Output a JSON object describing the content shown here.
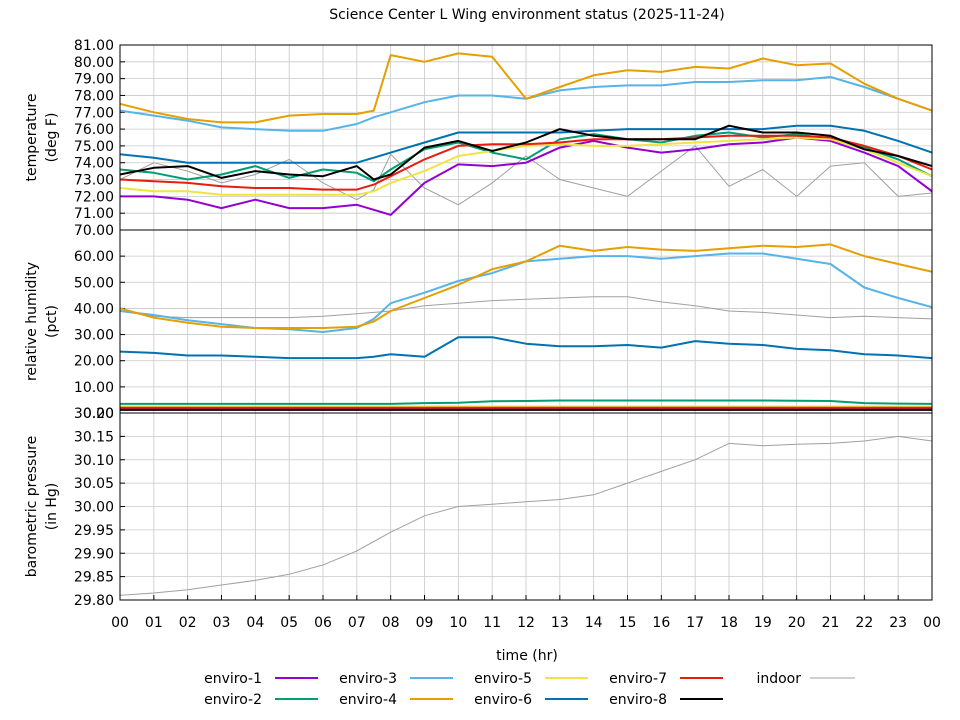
{
  "title": "Science Center L Wing environment status (2025-11-24)",
  "colors": {
    "enviro-1": "#9400d3",
    "enviro-2": "#009e73",
    "enviro-3": "#56b4e9",
    "enviro-4": "#e69f00",
    "enviro-5": "#f0e442",
    "enviro-6": "#0072b2",
    "enviro-7": "#e51e10",
    "enviro-8": "#000000",
    "indoor": "#a0a0a0"
  },
  "chart_data": [
    {
      "type": "line",
      "title": "Science Center L Wing environment status (2025-11-24)",
      "xlabel": "",
      "ylabel": "temperature\n(deg F)",
      "ylim": [
        70,
        81
      ],
      "xlim": [
        0,
        24
      ],
      "grid": true,
      "yticks": [
        "70.00",
        "71.00",
        "72.00",
        "73.00",
        "74.00",
        "75.00",
        "76.00",
        "77.00",
        "78.00",
        "79.00",
        "80.00",
        "81.00"
      ],
      "x": [
        0,
        1,
        2,
        3,
        4,
        5,
        6,
        7,
        7.5,
        8,
        9,
        10,
        11,
        12,
        13,
        14,
        15,
        16,
        17,
        18,
        19,
        20,
        21,
        22,
        23,
        24
      ],
      "series": [
        {
          "name": "enviro-1",
          "values": [
            72.0,
            72.0,
            71.8,
            71.3,
            71.8,
            71.3,
            71.3,
            71.5,
            71.2,
            70.9,
            72.8,
            73.9,
            73.8,
            74.0,
            74.9,
            75.3,
            74.9,
            74.6,
            74.8,
            75.1,
            75.2,
            75.5,
            75.3,
            74.6,
            73.8,
            72.3
          ]
        },
        {
          "name": "enviro-2",
          "values": [
            73.6,
            73.4,
            73.0,
            73.3,
            73.8,
            73.1,
            73.6,
            73.4,
            72.9,
            73.6,
            74.8,
            75.2,
            74.6,
            74.2,
            75.4,
            75.7,
            75.4,
            75.2,
            75.6,
            75.8,
            75.5,
            75.7,
            75.4,
            74.9,
            74.2,
            73.2
          ]
        },
        {
          "name": "enviro-3",
          "values": [
            77.1,
            76.8,
            76.5,
            76.1,
            76.0,
            75.9,
            75.9,
            76.3,
            76.7,
            77.0,
            77.6,
            78.0,
            78.0,
            77.8,
            78.3,
            78.5,
            78.6,
            78.6,
            78.8,
            78.8,
            78.9,
            78.9,
            79.1,
            78.5,
            77.8,
            77.1
          ]
        },
        {
          "name": "enviro-4",
          "values": [
            77.5,
            77.0,
            76.6,
            76.4,
            76.4,
            76.8,
            76.9,
            76.9,
            77.1,
            80.4,
            80.0,
            80.5,
            80.3,
            77.8,
            78.5,
            79.2,
            79.5,
            79.4,
            79.7,
            79.6,
            80.2,
            79.8,
            79.9,
            78.7,
            77.8,
            77.1
          ]
        },
        {
          "name": "enviro-5",
          "values": [
            72.5,
            72.3,
            72.3,
            72.1,
            72.1,
            72.1,
            72.1,
            72.1,
            72.3,
            72.8,
            73.5,
            74.4,
            74.7,
            75.0,
            75.1,
            75.0,
            75.0,
            75.1,
            75.2,
            75.3,
            75.4,
            75.5,
            75.4,
            74.8,
            74.0,
            73.2
          ]
        },
        {
          "name": "enviro-6",
          "values": [
            74.5,
            74.3,
            74.0,
            74.0,
            74.0,
            74.0,
            74.0,
            74.0,
            74.3,
            74.6,
            75.2,
            75.8,
            75.8,
            75.8,
            75.8,
            75.9,
            76.0,
            76.0,
            76.0,
            76.0,
            76.0,
            76.2,
            76.2,
            75.9,
            75.3,
            74.6
          ]
        },
        {
          "name": "enviro-7",
          "values": [
            73.0,
            72.9,
            72.8,
            72.6,
            72.5,
            72.5,
            72.4,
            72.4,
            72.7,
            73.2,
            74.2,
            75.0,
            75.1,
            75.1,
            75.2,
            75.4,
            75.4,
            75.4,
            75.5,
            75.6,
            75.6,
            75.6,
            75.5,
            75.0,
            74.4,
            73.6
          ]
        },
        {
          "name": "enviro-8",
          "values": [
            73.3,
            73.7,
            73.8,
            73.1,
            73.5,
            73.3,
            73.2,
            73.8,
            73.0,
            73.3,
            74.9,
            75.3,
            74.7,
            75.2,
            76.0,
            75.6,
            75.4,
            75.4,
            75.4,
            76.2,
            75.8,
            75.8,
            75.6,
            74.8,
            74.4,
            73.8
          ]
        },
        {
          "name": "indoor",
          "values": [
            73.0,
            74.0,
            73.5,
            72.8,
            73.3,
            74.2,
            72.8,
            71.8,
            72.4,
            74.5,
            72.5,
            71.5,
            72.8,
            74.4,
            73.0,
            72.5,
            72.0,
            73.5,
            75.0,
            72.6,
            73.6,
            72.0,
            73.8,
            74.0,
            72.0,
            72.2
          ]
        }
      ]
    },
    {
      "type": "line",
      "xlabel": "",
      "ylabel": "relative humidity\n(pct)",
      "ylim": [
        0,
        70
      ],
      "xlim": [
        0,
        24
      ],
      "grid": true,
      "yticks": [
        "0.00",
        "10.00",
        "20.00",
        "30.00",
        "40.00",
        "50.00",
        "60.00"
      ],
      "x": [
        0,
        1,
        2,
        3,
        4,
        5,
        6,
        7,
        7.5,
        8,
        9,
        10,
        11,
        12,
        13,
        14,
        15,
        16,
        17,
        18,
        19,
        20,
        21,
        22,
        23,
        24
      ],
      "series": [
        {
          "name": "enviro-1",
          "values": [
            1.5,
            1.5,
            1.5,
            1.5,
            1.5,
            1.5,
            1.5,
            1.5,
            1.5,
            1.5,
            1.5,
            1.5,
            1.5,
            1.5,
            1.5,
            1.5,
            1.5,
            1.5,
            1.5,
            1.5,
            1.5,
            1.5,
            1.5,
            1.5,
            1.5,
            1.5
          ]
        },
        {
          "name": "enviro-2",
          "values": [
            3.5,
            3.5,
            3.5,
            3.5,
            3.5,
            3.5,
            3.5,
            3.5,
            3.5,
            3.5,
            3.8,
            3.9,
            4.5,
            4.6,
            4.8,
            4.8,
            4.8,
            4.8,
            4.8,
            4.8,
            4.8,
            4.7,
            4.6,
            3.8,
            3.6,
            3.5
          ]
        },
        {
          "name": "enviro-3",
          "values": [
            39.0,
            37.5,
            35.5,
            34.0,
            32.5,
            32.0,
            31.0,
            32.5,
            36.0,
            42.0,
            46.0,
            50.5,
            53.5,
            58.0,
            59.0,
            60.0,
            60.0,
            59.0,
            60.0,
            61.0,
            61.0,
            59.0,
            57.0,
            48.0,
            44.0,
            40.5
          ]
        },
        {
          "name": "enviro-4",
          "values": [
            40.0,
            36.5,
            34.5,
            33.0,
            32.5,
            32.5,
            32.5,
            33.0,
            35.0,
            39.0,
            44.0,
            49.0,
            55.0,
            58.0,
            64.0,
            62.0,
            63.5,
            62.5,
            62.0,
            63.0,
            64.0,
            63.5,
            64.5,
            60.0,
            57.0,
            54.0
          ]
        },
        {
          "name": "enviro-5",
          "values": [
            2.5,
            2.5,
            2.5,
            2.5,
            2.5,
            2.5,
            2.5,
            2.5,
            2.5,
            2.5,
            2.5,
            2.5,
            2.5,
            2.5,
            2.5,
            2.5,
            2.5,
            2.5,
            2.5,
            2.5,
            2.5,
            2.5,
            2.5,
            2.5,
            2.5,
            2.5
          ]
        },
        {
          "name": "enviro-6",
          "values": [
            23.5,
            23.0,
            22.0,
            22.0,
            21.5,
            21.0,
            21.0,
            21.0,
            21.5,
            22.5,
            21.5,
            29.0,
            29.0,
            26.5,
            25.5,
            25.5,
            26.0,
            25.0,
            27.5,
            26.5,
            26.0,
            24.5,
            24.0,
            22.5,
            22.0,
            21.0
          ]
        },
        {
          "name": "enviro-7",
          "values": [
            2.0,
            2.0,
            2.0,
            2.0,
            2.0,
            2.0,
            2.0,
            2.0,
            2.0,
            2.0,
            2.0,
            2.0,
            2.0,
            2.0,
            2.0,
            2.0,
            2.0,
            2.0,
            2.0,
            2.0,
            2.0,
            2.0,
            2.0,
            2.0,
            2.0,
            2.0
          ]
        },
        {
          "name": "enviro-8",
          "values": [
            1.2,
            1.2,
            1.2,
            1.2,
            1.2,
            1.2,
            1.2,
            1.2,
            1.2,
            1.2,
            1.2,
            1.2,
            1.2,
            1.2,
            1.2,
            1.2,
            1.2,
            1.2,
            1.2,
            1.2,
            1.2,
            1.2,
            1.2,
            1.2,
            1.2,
            1.2
          ]
        },
        {
          "name": "indoor",
          "values": [
            39.0,
            37.0,
            36.5,
            36.5,
            36.5,
            36.5,
            37.0,
            38.0,
            38.5,
            39.0,
            41.0,
            42.0,
            43.0,
            43.5,
            44.0,
            44.5,
            44.5,
            42.5,
            41.0,
            39.0,
            38.5,
            37.5,
            36.5,
            37.0,
            36.5,
            36.0
          ]
        }
      ]
    },
    {
      "type": "line",
      "xlabel": "time (hr)",
      "ylabel": "barometric pressure\n(in Hg)",
      "ylim": [
        29.8,
        30.2
      ],
      "xlim": [
        0,
        24
      ],
      "grid": true,
      "yticks": [
        "29.80",
        "29.85",
        "29.90",
        "29.95",
        "30.00",
        "30.05",
        "30.10",
        "30.15",
        "30.20"
      ],
      "xticks": [
        "00",
        "01",
        "02",
        "03",
        "04",
        "05",
        "06",
        "07",
        "08",
        "09",
        "10",
        "11",
        "12",
        "13",
        "14",
        "15",
        "16",
        "17",
        "18",
        "19",
        "20",
        "21",
        "22",
        "23",
        "00"
      ],
      "x": [
        0,
        1,
        2,
        3,
        4,
        5,
        6,
        7,
        8,
        9,
        10,
        11,
        12,
        13,
        14,
        15,
        16,
        17,
        18,
        19,
        20,
        21,
        22,
        23,
        24
      ],
      "series": [
        {
          "name": "indoor",
          "values": [
            29.81,
            29.815,
            29.822,
            29.832,
            29.842,
            29.855,
            29.875,
            29.905,
            29.945,
            29.98,
            30.0,
            30.005,
            30.01,
            30.015,
            30.025,
            30.05,
            30.075,
            30.1,
            30.135,
            30.13,
            30.133,
            30.135,
            30.14,
            30.15,
            30.14
          ]
        }
      ]
    }
  ],
  "legend": {
    "entries": [
      "enviro-1",
      "enviro-2",
      "enviro-3",
      "enviro-4",
      "enviro-5",
      "enviro-6",
      "enviro-7",
      "enviro-8",
      "indoor"
    ]
  }
}
